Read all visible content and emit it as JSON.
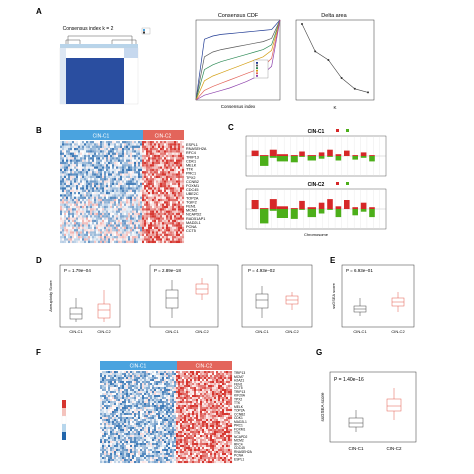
{
  "panels": {
    "A": {
      "letter": "A",
      "consensus_title": "Consensus index k = 2",
      "cdf_title": "Consensus CDF",
      "cdf_xlabel": "Consensus index",
      "delta_title": "Delta area",
      "delta_xlabel": "K"
    },
    "B": {
      "letter": "B",
      "group1": "CIN-C1",
      "group2": "CIN-C2",
      "genes": [
        "ESPL1",
        "RNASEH2A",
        "RFC4",
        "TRIP13",
        "CDK1",
        "MELK",
        "TTK",
        "PRC1",
        "TPX2",
        "CCNB2",
        "FOXM1",
        "CDC45",
        "UBE2C",
        "TOP2A",
        "TGIF2",
        "FEN1",
        "MCM2",
        "NCAPD2",
        "RAD51AP1",
        "MAD2L1",
        "PCNA",
        "CCT5"
      ]
    },
    "C": {
      "letter": "C",
      "group1": "CIN-C1",
      "group2": "CIN-C2",
      "xlabel": "Chromosome"
    },
    "D": {
      "letter": "D",
      "pvals": [
        "P = 1.79e–04",
        "P = 2.89e–18",
        "P = 4.93e–02"
      ],
      "ylabel": "Aneuploidy Score",
      "groups": [
        "CIN-C1",
        "CIN-C2"
      ]
    },
    "E": {
      "letter": "E",
      "pval": "P = 6.93e–01",
      "ylabel": "ssGSEA score",
      "groups": [
        "CIN-C1",
        "CIN-C2"
      ]
    },
    "F": {
      "letter": "F",
      "group1": "CIN-C1",
      "group2": "CIN-C2",
      "genes": [
        "TRIP13",
        "MCM7",
        "H2AZ1",
        "FEN1",
        "CCT5",
        "TRIP13",
        "KIF20A",
        "TPX2",
        "TTK",
        "MELK",
        "TOP2A",
        "CCNB2",
        "CDK1",
        "MAD2L1",
        "PRC1",
        "FOXM1",
        "TTK",
        "NCAPD2",
        "MCM2",
        "RFC4",
        "CDC45",
        "RNASEH2A",
        "PCNA",
        "ESPL1"
      ]
    },
    "G": {
      "letter": "G",
      "pval": "P = 1.40e–16",
      "ylabel": "ssGSEA score",
      "groups": [
        "CIN-C1",
        "CIN-C2"
      ]
    }
  },
  "colors": {
    "c1": "#4aa3df",
    "c2": "#e3655b",
    "heat_low": "#2166ac",
    "heat_high": "#d6352f",
    "gain": "#d62728",
    "loss": "#4caf1a",
    "box_c1": "#444444",
    "box_c2": "#e35a4e"
  },
  "chart_data": [
    {
      "type": "line",
      "panel": "A-cdf",
      "title": "Consensus CDF",
      "xlabel": "Consensus index",
      "ylabel": "",
      "x": [
        0,
        0.1,
        0.2,
        0.3,
        0.4,
        0.5,
        0.6,
        0.7,
        0.8,
        0.9,
        1.0
      ],
      "ylim": [
        0,
        1
      ],
      "series": [
        {
          "values": [
            0.0,
            0.76,
            0.8,
            0.82,
            0.83,
            0.84,
            0.85,
            0.86,
            0.87,
            0.88,
            1.0
          ]
        },
        {
          "values": [
            0.0,
            0.54,
            0.6,
            0.63,
            0.65,
            0.67,
            0.69,
            0.71,
            0.73,
            0.77,
            1.0
          ]
        },
        {
          "values": [
            0.0,
            0.38,
            0.44,
            0.48,
            0.51,
            0.54,
            0.57,
            0.6,
            0.63,
            0.69,
            1.0
          ]
        },
        {
          "values": [
            0.0,
            0.24,
            0.3,
            0.34,
            0.38,
            0.42,
            0.46,
            0.5,
            0.54,
            0.62,
            1.0
          ]
        },
        {
          "values": [
            0.0,
            0.12,
            0.17,
            0.21,
            0.25,
            0.29,
            0.33,
            0.37,
            0.42,
            0.52,
            1.0
          ]
        },
        {
          "values": [
            0.0,
            0.06,
            0.09,
            0.12,
            0.15,
            0.19,
            0.23,
            0.28,
            0.33,
            0.42,
            1.0
          ]
        }
      ]
    },
    {
      "type": "line",
      "panel": "A-delta",
      "title": "Delta area",
      "xlabel": "K",
      "x": [
        2,
        3,
        4,
        5,
        6,
        7
      ],
      "values": [
        1.0,
        0.62,
        0.5,
        0.25,
        0.1,
        0.05
      ],
      "ylim": [
        0,
        1
      ]
    }
  ]
}
